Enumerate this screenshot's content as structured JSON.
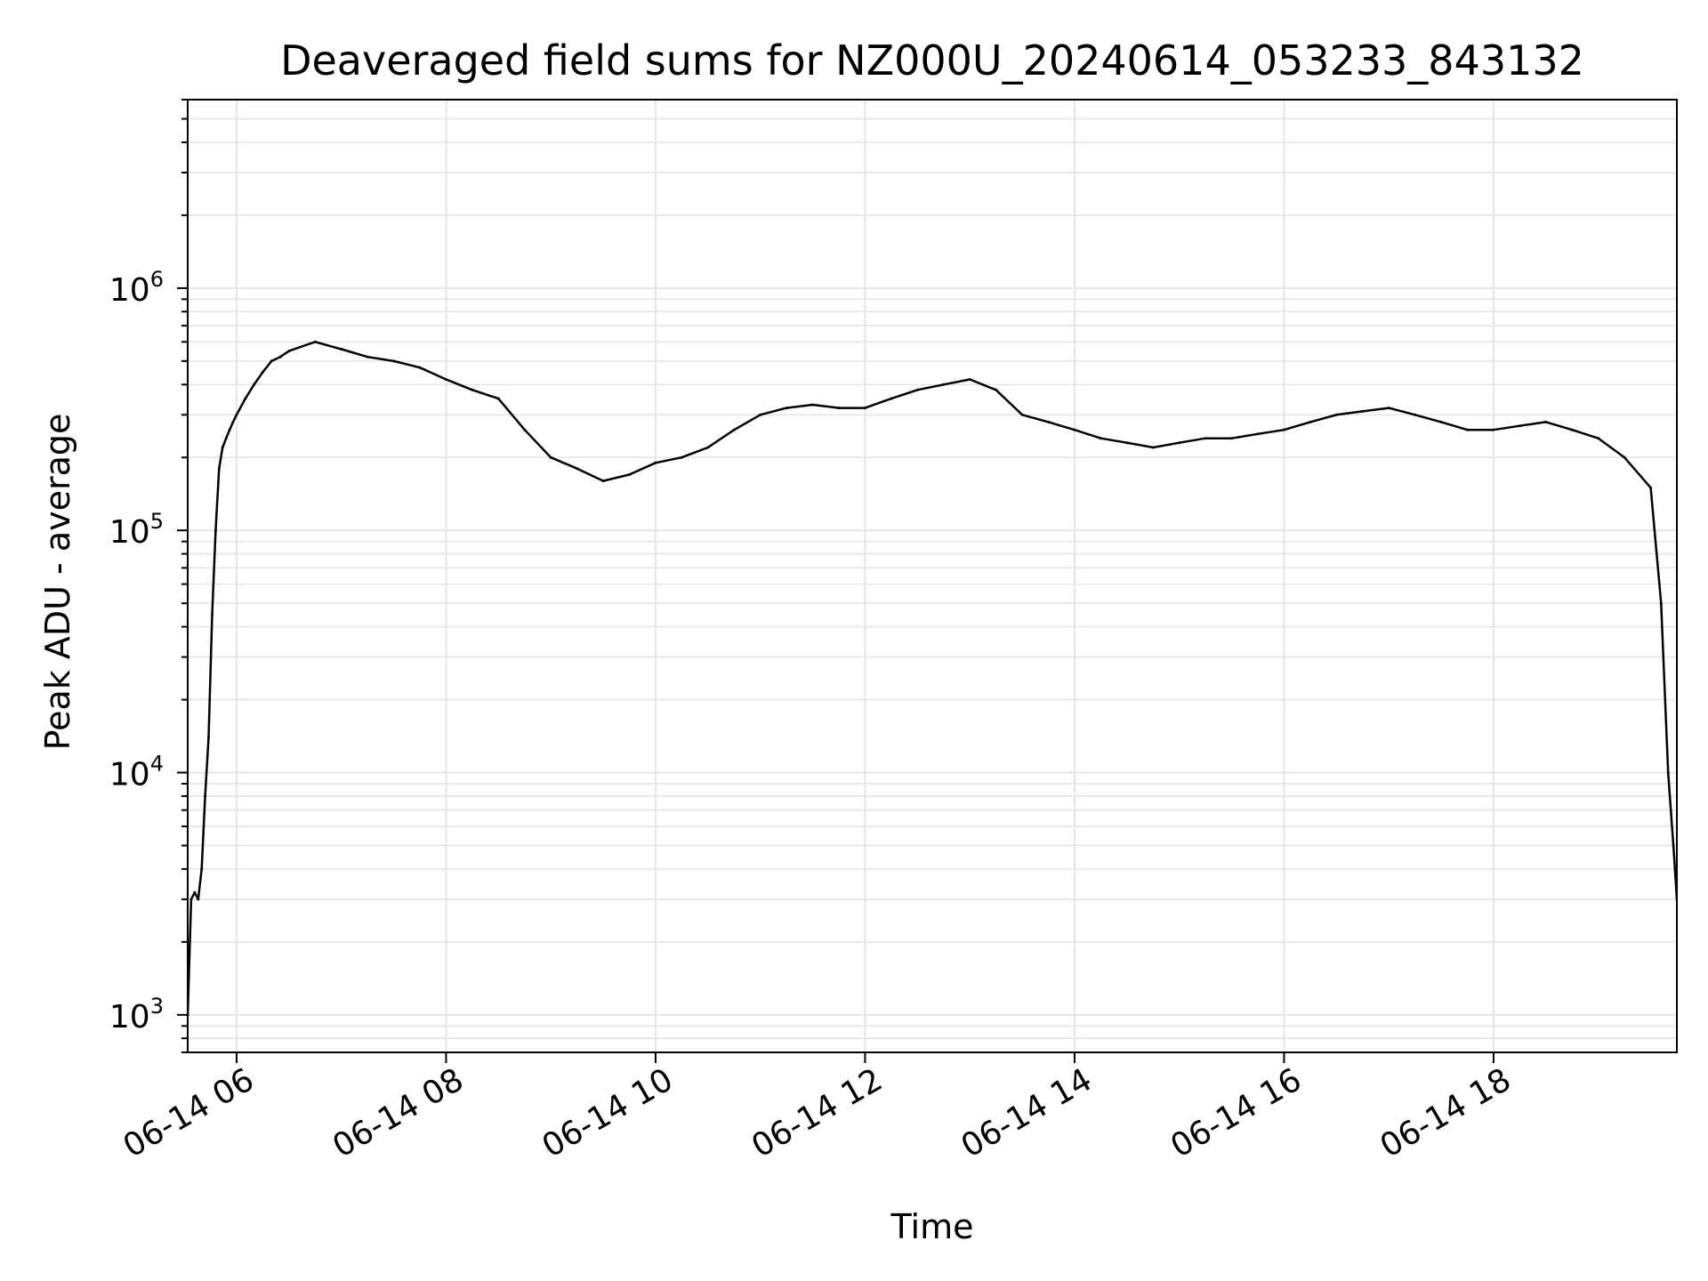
{
  "chart_data": {
    "type": "line",
    "title": "Deaveraged field sums for NZ000U_20240614_053233_843132",
    "xlabel": "Time",
    "ylabel": "Peak ADU - average",
    "y_scale": "log",
    "ylim": [
      700,
      6000000
    ],
    "xlim": [
      "2024-06-14 05:32",
      "2024-06-14 19:45"
    ],
    "grid": true,
    "line_color": "#000000",
    "grid_color": "#e5e5e5",
    "x_ticks": [
      {
        "value": "2024-06-14 06:00",
        "label": "06-14 06"
      },
      {
        "value": "2024-06-14 08:00",
        "label": "06-14 08"
      },
      {
        "value": "2024-06-14 10:00",
        "label": "06-14 10"
      },
      {
        "value": "2024-06-14 12:00",
        "label": "06-14 12"
      },
      {
        "value": "2024-06-14 14:00",
        "label": "06-14 14"
      },
      {
        "value": "2024-06-14 16:00",
        "label": "06-14 16"
      },
      {
        "value": "2024-06-14 18:00",
        "label": "06-14 18"
      }
    ],
    "y_ticks": [
      {
        "value": 1000,
        "base": "10",
        "exp": "3"
      },
      {
        "value": 10000,
        "base": "10",
        "exp": "4"
      },
      {
        "value": 100000,
        "base": "10",
        "exp": "5"
      },
      {
        "value": 1000000,
        "base": "10",
        "exp": "6"
      }
    ],
    "series": [
      {
        "x": [
          "2024-06-14 05:32",
          "2024-06-14 05:34",
          "2024-06-14 05:36",
          "2024-06-14 05:38",
          "2024-06-14 05:40",
          "2024-06-14 05:42",
          "2024-06-14 05:44",
          "2024-06-14 05:46",
          "2024-06-14 05:48",
          "2024-06-14 05:50",
          "2024-06-14 05:52",
          "2024-06-14 05:54",
          "2024-06-14 05:56",
          "2024-06-14 05:58",
          "2024-06-14 06:00",
          "2024-06-14 06:05",
          "2024-06-14 06:10",
          "2024-06-14 06:15",
          "2024-06-14 06:20",
          "2024-06-14 06:25",
          "2024-06-14 06:30",
          "2024-06-14 06:45",
          "2024-06-14 07:00",
          "2024-06-14 07:15",
          "2024-06-14 07:30",
          "2024-06-14 07:45",
          "2024-06-14 08:00",
          "2024-06-14 08:15",
          "2024-06-14 08:30",
          "2024-06-14 08:45",
          "2024-06-14 09:00",
          "2024-06-14 09:15",
          "2024-06-14 09:30",
          "2024-06-14 09:45",
          "2024-06-14 10:00",
          "2024-06-14 10:15",
          "2024-06-14 10:30",
          "2024-06-14 10:45",
          "2024-06-14 11:00",
          "2024-06-14 11:15",
          "2024-06-14 11:30",
          "2024-06-14 11:45",
          "2024-06-14 12:00",
          "2024-06-14 12:15",
          "2024-06-14 12:30",
          "2024-06-14 12:45",
          "2024-06-14 13:00",
          "2024-06-14 13:15",
          "2024-06-14 13:30",
          "2024-06-14 13:45",
          "2024-06-14 14:00",
          "2024-06-14 14:15",
          "2024-06-14 14:30",
          "2024-06-14 14:45",
          "2024-06-14 15:00",
          "2024-06-14 15:15",
          "2024-06-14 15:30",
          "2024-06-14 15:45",
          "2024-06-14 16:00",
          "2024-06-14 16:15",
          "2024-06-14 16:30",
          "2024-06-14 16:45",
          "2024-06-14 17:00",
          "2024-06-14 17:15",
          "2024-06-14 17:30",
          "2024-06-14 17:45",
          "2024-06-14 18:00",
          "2024-06-14 18:15",
          "2024-06-14 18:30",
          "2024-06-14 18:45",
          "2024-06-14 19:00",
          "2024-06-14 19:15",
          "2024-06-14 19:30",
          "2024-06-14 19:36",
          "2024-06-14 19:40",
          "2024-06-14 19:43",
          "2024-06-14 19:45"
        ],
        "values": [
          1000,
          3000,
          3200,
          3000,
          4000,
          8000,
          14000,
          45000,
          100000,
          180000,
          220000,
          240000,
          260000,
          280000,
          300000,
          350000,
          400000,
          450000,
          500000,
          520000,
          550000,
          600000,
          560000,
          520000,
          500000,
          470000,
          420000,
          380000,
          350000,
          260000,
          200000,
          180000,
          160000,
          170000,
          190000,
          200000,
          220000,
          260000,
          300000,
          320000,
          330000,
          320000,
          320000,
          350000,
          380000,
          400000,
          420000,
          380000,
          300000,
          280000,
          260000,
          240000,
          230000,
          220000,
          230000,
          240000,
          240000,
          250000,
          260000,
          280000,
          300000,
          310000,
          320000,
          300000,
          280000,
          260000,
          260000,
          270000,
          280000,
          260000,
          240000,
          200000,
          150000,
          50000,
          10000,
          5000,
          3000
        ]
      }
    ]
  }
}
